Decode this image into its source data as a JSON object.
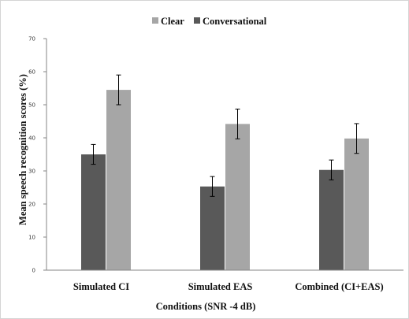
{
  "chart_data": {
    "type": "bar",
    "categories": [
      "Simulated CI",
      "Simulated EAS",
      "Combined (CI+EAS)"
    ],
    "series": [
      {
        "name": "Conversational",
        "values": [
          35,
          25.3,
          30.3
        ],
        "errors": [
          3,
          3,
          3
        ],
        "color": "#595959"
      },
      {
        "name": "Clear",
        "values": [
          54.5,
          44.2,
          39.8
        ],
        "errors": [
          4.5,
          4.5,
          4.5
        ],
        "color": "#a6a6a6"
      }
    ],
    "legend_order": [
      "Clear",
      "Conversational"
    ],
    "legend_position": "top-center",
    "title": "",
    "xlabel": "Conditions (SNR -4 dB)",
    "ylabel": "Mean speech recognition scores (%)",
    "ylim": [
      0,
      70
    ],
    "yticks": [
      0,
      10,
      20,
      30,
      40,
      50,
      60,
      70
    ],
    "error_bars": true,
    "grid": false
  }
}
